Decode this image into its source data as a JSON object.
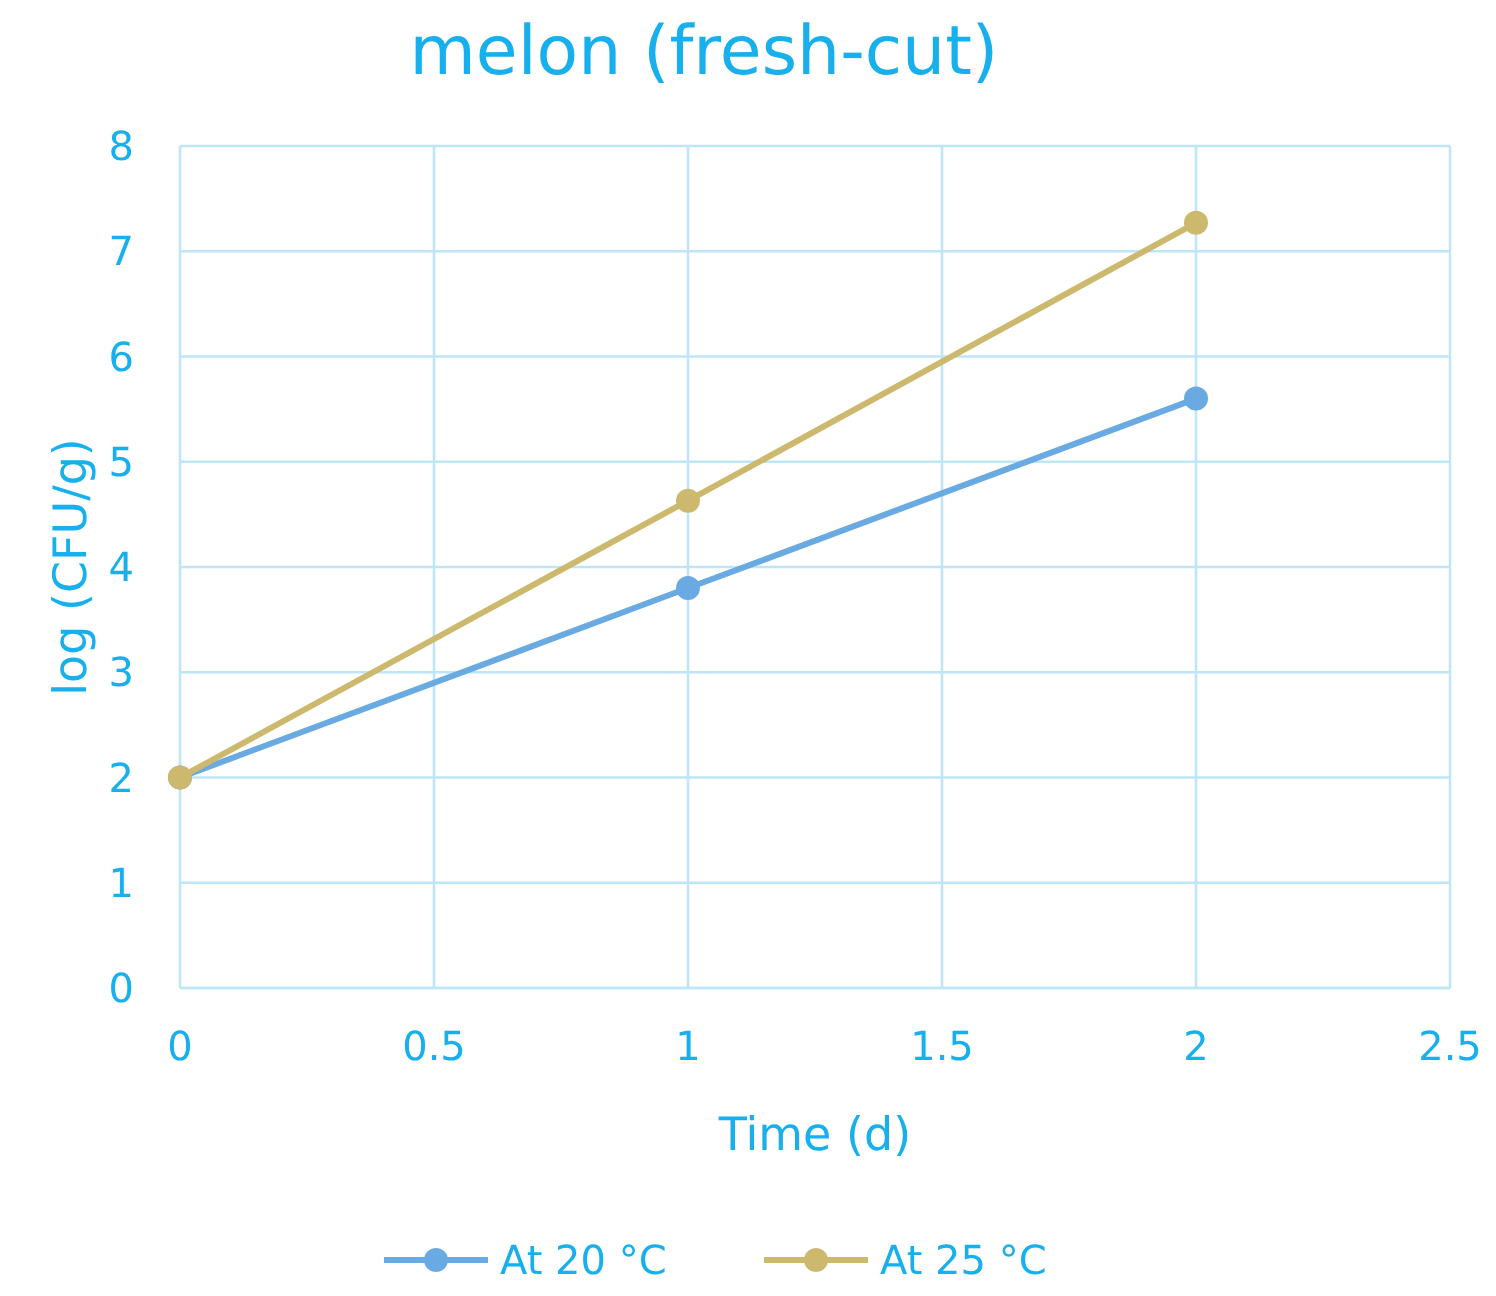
{
  "chart_data": {
    "type": "line",
    "title": "melon (fresh-cut)",
    "xlabel": "Time (d)",
    "ylabel": "log (CFU/g)",
    "x": [
      0,
      1,
      2
    ],
    "series": [
      {
        "name": "At 20 °C",
        "color": "#6aaae2",
        "values": [
          2,
          3.8,
          5.6
        ]
      },
      {
        "name": "At 25 °C",
        "color": "#cdb96e",
        "values": [
          2,
          4.63,
          7.27
        ]
      }
    ],
    "xlim": [
      0,
      2.5
    ],
    "xticks": [
      0,
      0.5,
      1,
      1.5,
      2,
      2.5
    ],
    "ylim": [
      0,
      8
    ],
    "yticks": [
      0,
      1,
      2,
      3,
      4,
      5,
      6,
      7,
      8
    ],
    "grid": true,
    "legend": "bottom",
    "marker": "circle",
    "line_style": "solid"
  }
}
